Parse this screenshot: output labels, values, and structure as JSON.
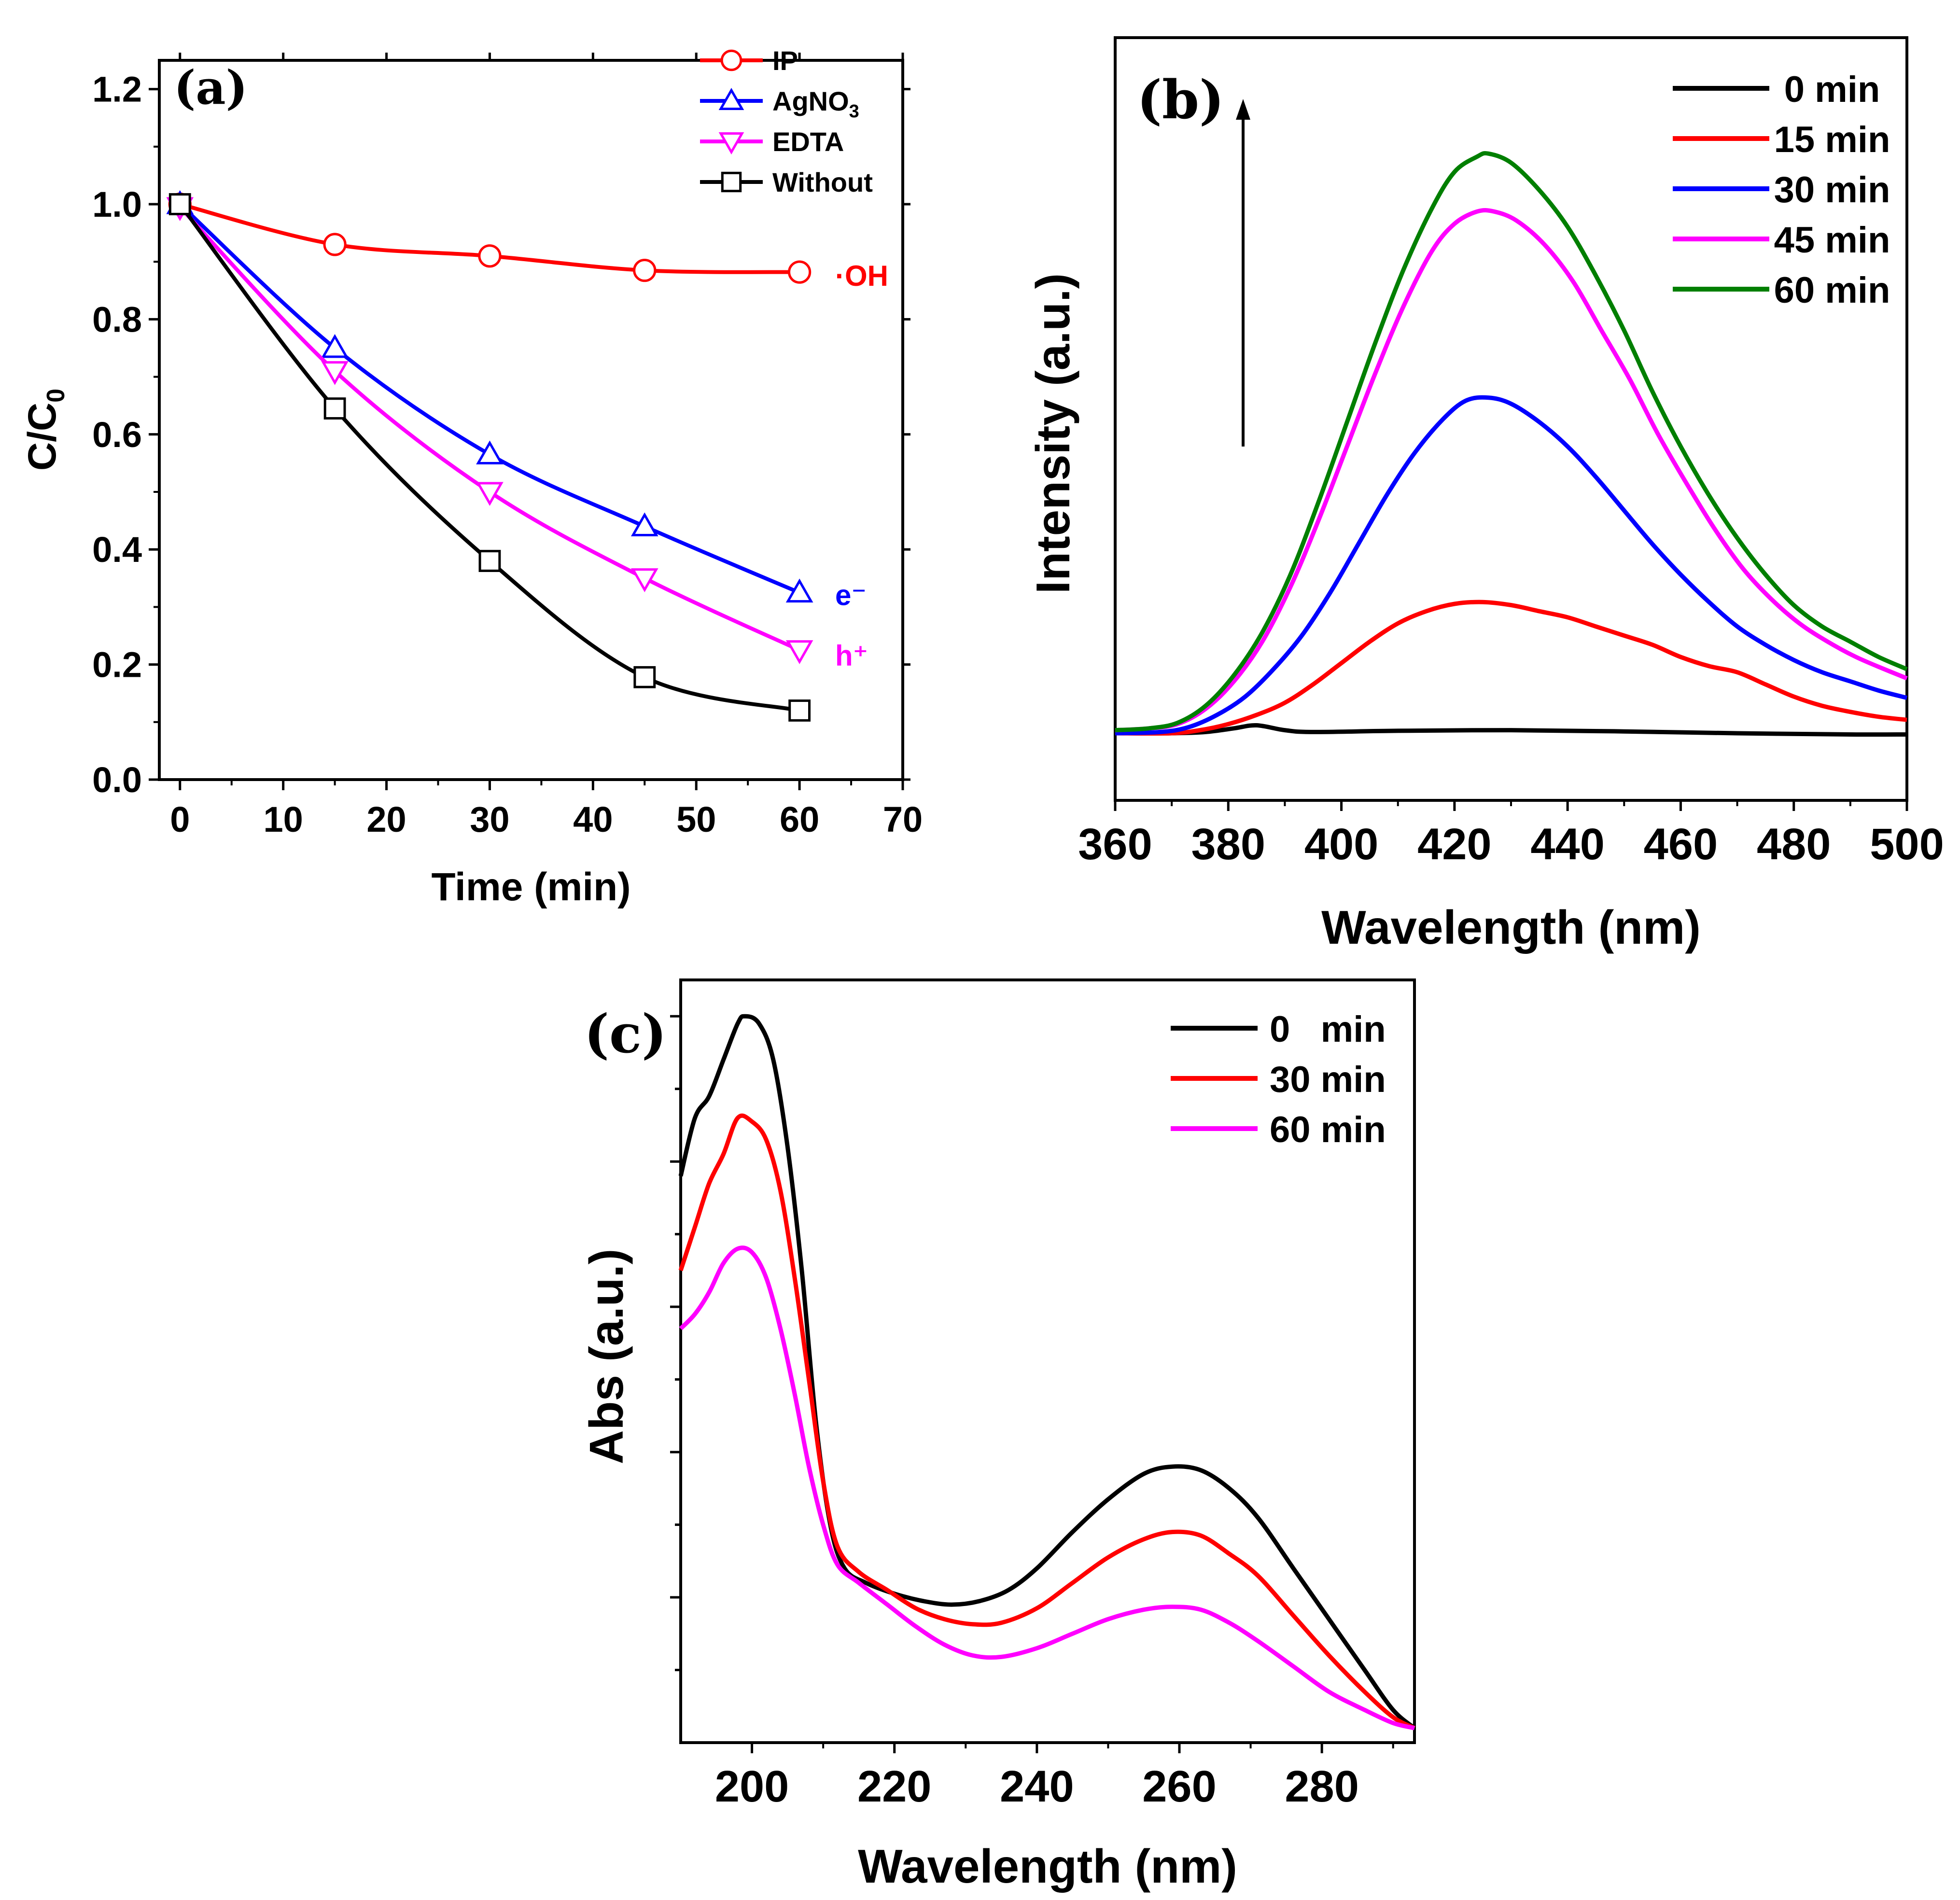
{
  "chart_data": [
    {
      "id": "a",
      "type": "line",
      "panel_label": "(a)",
      "title": "",
      "xlabel": "Time (min)",
      "ylabel_main": "C/C",
      "ylabel_sub": "0",
      "xlim": [
        -2,
        70
      ],
      "ylim": [
        0,
        1.25
      ],
      "xticks": [
        0,
        10,
        20,
        30,
        40,
        50,
        60,
        70
      ],
      "yticks": [
        0.0,
        0.2,
        0.4,
        0.6,
        0.8,
        1.0,
        1.2
      ],
      "xtick_labels": [
        "0",
        "10",
        "20",
        "30",
        "40",
        "50",
        "60",
        "70"
      ],
      "ytick_labels": [
        "0.0",
        "0.2",
        "0.4",
        "0.6",
        "0.8",
        "1.0",
        "1.2"
      ],
      "legend_position": "top-right",
      "series": [
        {
          "name": "IP",
          "color": "#ff0000",
          "marker": "circle",
          "x": [
            0,
            15,
            30,
            45,
            60
          ],
          "values": [
            1.0,
            0.93,
            0.91,
            0.885,
            0.882
          ],
          "annotation": "·OH"
        },
        {
          "name": "AgNO",
          "name_sub": "3",
          "color": "#0000ff",
          "marker": "triangle-up",
          "x": [
            0,
            15,
            30,
            45,
            60
          ],
          "values": [
            1.0,
            0.75,
            0.565,
            0.44,
            0.325
          ],
          "annotation": "e⁻"
        },
        {
          "name": "EDTA",
          "color": "#ff00ff",
          "marker": "triangle-down",
          "x": [
            0,
            15,
            30,
            45,
            60
          ],
          "values": [
            0.995,
            0.71,
            0.5,
            0.35,
            0.225
          ],
          "annotation": "h⁺"
        },
        {
          "name": "Without",
          "color": "#000000",
          "marker": "square",
          "x": [
            0,
            15,
            30,
            45,
            60
          ],
          "values": [
            1.0,
            0.645,
            0.38,
            0.178,
            0.12
          ],
          "annotation": ""
        }
      ]
    },
    {
      "id": "b",
      "type": "line",
      "panel_label": "(b)",
      "title": "",
      "xlabel": "Wavelength (nm)",
      "ylabel": "Intensity (a.u.)",
      "xlim": [
        360,
        500
      ],
      "ylim": [
        0,
        1.25
      ],
      "xticks": [
        360,
        380,
        400,
        420,
        440,
        460,
        480,
        500
      ],
      "xtick_labels": [
        "360",
        "380",
        "400",
        "420",
        "440",
        "460",
        "480",
        "500"
      ],
      "legend_position": "top-right",
      "series": [
        {
          "name": "0 min",
          "color": "#000000",
          "points": [
            [
              360,
              0.11
            ],
            [
              370,
              0.11
            ],
            [
              376,
              0.112
            ],
            [
              381,
              0.118
            ],
            [
              385,
              0.123
            ],
            [
              390,
              0.115
            ],
            [
              395,
              0.112
            ],
            [
              410,
              0.114
            ],
            [
              430,
              0.115
            ],
            [
              450,
              0.113
            ],
            [
              470,
              0.11
            ],
            [
              490,
              0.108
            ],
            [
              500,
              0.108
            ]
          ]
        },
        {
          "name": "15 min",
          "color": "#ff0000",
          "points": [
            [
              360,
              0.11
            ],
            [
              370,
              0.11
            ],
            [
              375,
              0.115
            ],
            [
              380,
              0.125
            ],
            [
              385,
              0.14
            ],
            [
              390,
              0.16
            ],
            [
              395,
              0.19
            ],
            [
              400,
              0.225
            ],
            [
              405,
              0.26
            ],
            [
              410,
              0.29
            ],
            [
              415,
              0.31
            ],
            [
              420,
              0.322
            ],
            [
              425,
              0.325
            ],
            [
              430,
              0.32
            ],
            [
              435,
              0.31
            ],
            [
              440,
              0.3
            ],
            [
              445,
              0.285
            ],
            [
              450,
              0.27
            ],
            [
              455,
              0.255
            ],
            [
              460,
              0.235
            ],
            [
              465,
              0.22
            ],
            [
              470,
              0.21
            ],
            [
              475,
              0.19
            ],
            [
              480,
              0.17
            ],
            [
              485,
              0.155
            ],
            [
              490,
              0.145
            ],
            [
              495,
              0.137
            ],
            [
              500,
              0.132
            ]
          ]
        },
        {
          "name": "30 min",
          "color": "#0000ff",
          "points": [
            [
              360,
              0.11
            ],
            [
              368,
              0.112
            ],
            [
              373,
              0.12
            ],
            [
              378,
              0.14
            ],
            [
              383,
              0.17
            ],
            [
              388,
              0.215
            ],
            [
              393,
              0.27
            ],
            [
              398,
              0.34
            ],
            [
              403,
              0.42
            ],
            [
              408,
              0.5
            ],
            [
              413,
              0.57
            ],
            [
              418,
              0.625
            ],
            [
              422,
              0.655
            ],
            [
              426,
              0.66
            ],
            [
              430,
              0.65
            ],
            [
              435,
              0.62
            ],
            [
              440,
              0.58
            ],
            [
              445,
              0.53
            ],
            [
              450,
              0.475
            ],
            [
              455,
              0.42
            ],
            [
              460,
              0.37
            ],
            [
              465,
              0.325
            ],
            [
              470,
              0.285
            ],
            [
              475,
              0.255
            ],
            [
              480,
              0.23
            ],
            [
              485,
              0.21
            ],
            [
              490,
              0.195
            ],
            [
              495,
              0.18
            ],
            [
              500,
              0.168
            ]
          ]
        },
        {
          "name": "45 min",
          "color": "#ff00ff",
          "points": [
            [
              360,
              0.115
            ],
            [
              366,
              0.118
            ],
            [
              371,
              0.125
            ],
            [
              376,
              0.15
            ],
            [
              381,
              0.195
            ],
            [
              386,
              0.26
            ],
            [
              391,
              0.35
            ],
            [
              396,
              0.46
            ],
            [
              401,
              0.58
            ],
            [
              406,
              0.7
            ],
            [
              411,
              0.81
            ],
            [
              416,
              0.9
            ],
            [
              420,
              0.945
            ],
            [
              424,
              0.965
            ],
            [
              427,
              0.965
            ],
            [
              431,
              0.95
            ],
            [
              436,
              0.91
            ],
            [
              441,
              0.85
            ],
            [
              446,
              0.77
            ],
            [
              451,
              0.69
            ],
            [
              456,
              0.6
            ],
            [
              461,
              0.52
            ],
            [
              466,
              0.445
            ],
            [
              471,
              0.38
            ],
            [
              476,
              0.33
            ],
            [
              481,
              0.29
            ],
            [
              486,
              0.26
            ],
            [
              491,
              0.235
            ],
            [
              496,
              0.215
            ],
            [
              500,
              0.2
            ]
          ]
        },
        {
          "name": "60 min",
          "color": "#007f00",
          "points": [
            [
              360,
              0.115
            ],
            [
              366,
              0.118
            ],
            [
              371,
              0.127
            ],
            [
              376,
              0.155
            ],
            [
              381,
              0.205
            ],
            [
              386,
              0.275
            ],
            [
              391,
              0.37
            ],
            [
              396,
              0.49
            ],
            [
              401,
              0.62
            ],
            [
              406,
              0.75
            ],
            [
              411,
              0.87
            ],
            [
              416,
              0.97
            ],
            [
              420,
              1.03
            ],
            [
              424,
              1.055
            ],
            [
              426,
              1.06
            ],
            [
              430,
              1.045
            ],
            [
              435,
              1.0
            ],
            [
              440,
              0.94
            ],
            [
              445,
              0.86
            ],
            [
              450,
              0.77
            ],
            [
              455,
              0.67
            ],
            [
              460,
              0.58
            ],
            [
              465,
              0.5
            ],
            [
              470,
              0.43
            ],
            [
              475,
              0.37
            ],
            [
              480,
              0.32
            ],
            [
              485,
              0.285
            ],
            [
              490,
              0.26
            ],
            [
              495,
              0.235
            ],
            [
              500,
              0.215
            ]
          ]
        }
      ]
    },
    {
      "id": "c",
      "type": "line",
      "panel_label": "(c)",
      "title": "",
      "xlabel": "Wavelength (nm)",
      "ylabel": "Abs (a.u.)",
      "xlim": [
        190,
        293
      ],
      "ylim": [
        0,
        1.05
      ],
      "xticks": [
        200,
        220,
        240,
        260,
        280
      ],
      "xtick_labels": [
        "200",
        "220",
        "240",
        "260",
        "280"
      ],
      "legend_position": "top-right",
      "series": [
        {
          "name": "0   min",
          "color": "#000000",
          "points": [
            [
              190,
              0.78
            ],
            [
              192,
              0.86
            ],
            [
              194,
              0.89
            ],
            [
              196,
              0.94
            ],
            [
              198,
              0.99
            ],
            [
              199,
              1.0
            ],
            [
              201,
              0.99
            ],
            [
              203,
              0.94
            ],
            [
              205,
              0.82
            ],
            [
              207,
              0.65
            ],
            [
              209,
              0.44
            ],
            [
              211,
              0.3
            ],
            [
              213,
              0.24
            ],
            [
              216,
              0.22
            ],
            [
              220,
              0.205
            ],
            [
              224,
              0.195
            ],
            [
              228,
              0.19
            ],
            [
              232,
              0.195
            ],
            [
              236,
              0.21
            ],
            [
              240,
              0.24
            ],
            [
              245,
              0.29
            ],
            [
              250,
              0.335
            ],
            [
              255,
              0.37
            ],
            [
              259,
              0.38
            ],
            [
              263,
              0.375
            ],
            [
              267,
              0.35
            ],
            [
              271,
              0.31
            ],
            [
              276,
              0.24
            ],
            [
              281,
              0.17
            ],
            [
              286,
              0.1
            ],
            [
              290,
              0.045
            ],
            [
              293,
              0.02
            ]
          ]
        },
        {
          "name": "30 min",
          "color": "#ff0000",
          "points": [
            [
              190,
              0.65
            ],
            [
              192,
              0.71
            ],
            [
              194,
              0.77
            ],
            [
              196,
              0.81
            ],
            [
              198,
              0.86
            ],
            [
              200,
              0.855
            ],
            [
              202,
              0.83
            ],
            [
              204,
              0.76
            ],
            [
              206,
              0.64
            ],
            [
              208,
              0.5
            ],
            [
              210,
              0.36
            ],
            [
              212,
              0.27
            ],
            [
              215,
              0.235
            ],
            [
              219,
              0.21
            ],
            [
              223,
              0.185
            ],
            [
              227,
              0.17
            ],
            [
              231,
              0.163
            ],
            [
              235,
              0.165
            ],
            [
              240,
              0.185
            ],
            [
              245,
              0.22
            ],
            [
              250,
              0.255
            ],
            [
              255,
              0.28
            ],
            [
              259,
              0.29
            ],
            [
              263,
              0.285
            ],
            [
              267,
              0.26
            ],
            [
              271,
              0.23
            ],
            [
              276,
              0.175
            ],
            [
              281,
              0.12
            ],
            [
              286,
              0.07
            ],
            [
              290,
              0.035
            ],
            [
              293,
              0.02
            ]
          ]
        },
        {
          "name": "60 min",
          "color": "#ff00ff",
          "points": [
            [
              190,
              0.57
            ],
            [
              192,
              0.59
            ],
            [
              194,
              0.62
            ],
            [
              196,
              0.66
            ],
            [
              198,
              0.68
            ],
            [
              200,
              0.675
            ],
            [
              202,
              0.64
            ],
            [
              204,
              0.57
            ],
            [
              206,
              0.48
            ],
            [
              208,
              0.38
            ],
            [
              210,
              0.3
            ],
            [
              212,
              0.245
            ],
            [
              215,
              0.22
            ],
            [
              219,
              0.19
            ],
            [
              223,
              0.16
            ],
            [
              227,
              0.135
            ],
            [
              231,
              0.12
            ],
            [
              235,
              0.118
            ],
            [
              240,
              0.13
            ],
            [
              245,
              0.15
            ],
            [
              250,
              0.17
            ],
            [
              255,
              0.183
            ],
            [
              259,
              0.187
            ],
            [
              263,
              0.183
            ],
            [
              267,
              0.165
            ],
            [
              271,
              0.14
            ],
            [
              276,
              0.105
            ],
            [
              281,
              0.07
            ],
            [
              286,
              0.045
            ],
            [
              290,
              0.027
            ],
            [
              293,
              0.02
            ]
          ]
        }
      ]
    }
  ]
}
